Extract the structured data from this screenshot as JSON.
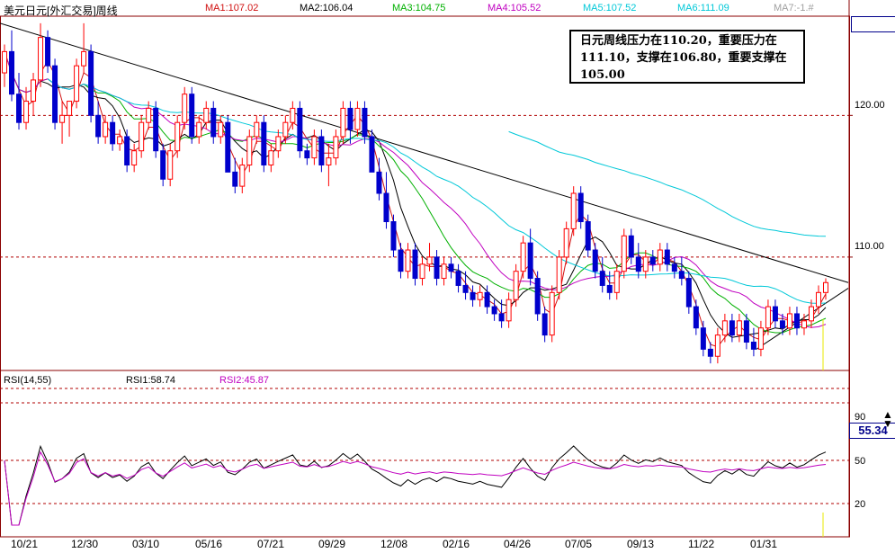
{
  "header": {
    "title": "美元日元[外汇交易]周线",
    "ma": [
      {
        "label": "MA1:107.02",
        "color": "#d01010"
      },
      {
        "label": "MA2:106.04",
        "color": "#000000"
      },
      {
        "label": "MA3:104.75",
        "color": "#00b000"
      },
      {
        "label": "MA4:105.52",
        "color": "#c000c0"
      },
      {
        "label": "MA5:107.52",
        "color": "#00c8d8"
      },
      {
        "label": "MA6:111.09",
        "color": "#00c8d8"
      },
      {
        "label": "MA7:-1.#",
        "color": "#a0a0a0"
      }
    ]
  },
  "annotation": {
    "line1": "日元周线压力在110.20，重要压力在",
    "line2": "111.10，支撑在106.80，重要支撑在",
    "line3": "105.00"
  },
  "rsi_panel": {
    "title": "RSI(14,55)",
    "rsi1_label": "RSI1:58.74",
    "rsi2_label": "RSI2:45.87",
    "rsi1_color": "#000000",
    "rsi2_color": "#c000c0",
    "current": "55.34"
  },
  "y_labels": {
    "price": [
      "120.00",
      "110.00"
    ],
    "rsi": [
      "90",
      "50",
      "20"
    ]
  },
  "x_labels": [
    "10/21",
    "12/30",
    "03/10",
    "05/16",
    "07/21",
    "09/29",
    "12/08",
    "02/16",
    "04/26",
    "07/05",
    "09/13",
    "11/22",
    "01/31"
  ],
  "colors": {
    "up": "#ff0000",
    "down": "#0000cc",
    "grid": "#b00000",
    "trend": "#000000"
  },
  "chart_data": {
    "type": "candlestick",
    "price_range": [
      102,
      127
    ],
    "gridlines": [
      120,
      110
    ],
    "trendlines": [
      {
        "from": [
          "10/21",
          126.5
        ],
        "to": [
          "01/31",
          108.2
        ]
      },
      {
        "from": [
          "11/22",
          103.5
        ],
        "to": [
          "01/31",
          107.8
        ]
      }
    ],
    "candles_ohlc": [
      [
        123,
        125,
        122,
        124.5
      ],
      [
        124.5,
        126,
        121,
        121.5
      ],
      [
        121.5,
        123,
        119,
        119.5
      ],
      [
        119.5,
        122,
        119,
        121
      ],
      [
        121,
        123,
        120,
        122.5
      ],
      [
        122.5,
        126.5,
        122,
        125.5
      ],
      [
        125.5,
        126,
        123,
        123.5
      ],
      [
        123.5,
        124,
        119,
        119.5
      ],
      [
        119.5,
        121,
        118,
        120
      ],
      [
        120,
        121,
        118.5,
        121
      ],
      [
        121,
        124,
        120.5,
        123.5
      ],
      [
        123.5,
        126.5,
        123,
        124.5
      ],
      [
        124.5,
        125,
        119.5,
        120
      ],
      [
        120,
        121,
        118,
        118.5
      ],
      [
        118.5,
        120,
        118,
        119.5
      ],
      [
        119.5,
        120,
        117.5,
        118
      ],
      [
        118,
        119,
        117.5,
        118.5
      ],
      [
        118.5,
        119,
        116,
        116.5
      ],
      [
        116.5,
        118,
        116,
        117.5
      ],
      [
        117.5,
        120,
        117,
        119.5
      ],
      [
        119.5,
        121,
        119,
        120.5
      ],
      [
        120.5,
        121,
        117,
        117.5
      ],
      [
        117.5,
        118,
        115,
        115.5
      ],
      [
        115.5,
        118,
        115,
        117.5
      ],
      [
        117.5,
        120,
        117,
        119.5
      ],
      [
        119.5,
        122,
        119,
        121.5
      ],
      [
        121.5,
        122,
        118,
        118.5
      ],
      [
        118.5,
        120,
        118,
        119.5
      ],
      [
        119.5,
        121,
        119,
        120.5
      ],
      [
        120.5,
        121,
        118,
        118.5
      ],
      [
        118.5,
        120,
        118,
        119.5
      ],
      [
        119.5,
        120,
        116,
        116
      ],
      [
        116,
        117,
        114.5,
        115
      ],
      [
        115,
        117,
        114.5,
        116.5
      ],
      [
        116.5,
        119,
        116,
        118.5
      ],
      [
        118.5,
        120,
        118,
        119.5
      ],
      [
        119.5,
        120,
        116,
        116.5
      ],
      [
        116.5,
        118,
        116,
        117.5
      ],
      [
        117.5,
        119,
        117,
        118.5
      ],
      [
        118.5,
        120,
        118,
        119.5
      ],
      [
        119.5,
        121,
        119,
        120.5
      ],
      [
        120.5,
        121,
        117,
        117.5
      ],
      [
        117.5,
        118,
        116.5,
        117
      ],
      [
        117,
        119,
        116.5,
        118.5
      ],
      [
        118.5,
        119,
        116,
        116.5
      ],
      [
        116.5,
        118,
        115,
        117
      ],
      [
        117,
        119,
        116.5,
        118.5
      ],
      [
        118.5,
        121,
        118,
        120.5
      ],
      [
        120.5,
        121,
        118,
        119
      ],
      [
        119,
        121,
        118.5,
        120.5
      ],
      [
        120.5,
        121,
        118,
        118.5
      ],
      [
        118.5,
        119,
        116,
        116
      ],
      [
        116,
        117,
        114,
        114.5
      ],
      [
        114.5,
        116,
        112,
        112.5
      ],
      [
        112.5,
        113,
        110,
        110.5
      ],
      [
        110.5,
        111,
        108.5,
        109
      ],
      [
        109,
        111,
        108.5,
        110.5
      ],
      [
        110.5,
        111,
        108,
        108.5
      ],
      [
        108.5,
        110,
        108,
        109.5
      ],
      [
        109.5,
        111,
        109,
        110
      ],
      [
        110,
        110.5,
        108,
        108.5
      ],
      [
        108.5,
        110,
        108,
        109.5
      ],
      [
        109.5,
        110,
        108.5,
        109
      ],
      [
        109,
        109.5,
        107.5,
        108
      ],
      [
        108,
        109,
        107,
        107.5
      ],
      [
        107.5,
        108,
        106.5,
        107
      ],
      [
        107,
        108,
        106.5,
        107.5
      ],
      [
        107.5,
        108,
        106,
        106.5
      ],
      [
        106.5,
        107,
        105.5,
        106
      ],
      [
        106,
        107,
        105,
        105.5
      ],
      [
        105.5,
        107.5,
        105,
        107
      ],
      [
        107,
        109.5,
        106.5,
        109
      ],
      [
        109,
        111.5,
        108.5,
        111
      ],
      [
        111,
        112,
        108,
        108.5
      ],
      [
        108.5,
        109,
        105.5,
        106
      ],
      [
        106,
        106.5,
        104,
        104.5
      ],
      [
        104.5,
        108,
        104,
        107.5
      ],
      [
        107.5,
        110.5,
        107,
        110
      ],
      [
        110,
        112.5,
        109.5,
        112
      ],
      [
        112,
        115,
        111.5,
        114.5
      ],
      [
        114.5,
        115,
        112,
        112.5
      ],
      [
        112.5,
        113,
        110,
        110.5
      ],
      [
        110.5,
        111,
        108.5,
        109
      ],
      [
        109,
        110,
        107.5,
        108
      ],
      [
        108,
        109,
        107,
        107.5
      ],
      [
        107.5,
        109.5,
        107,
        109
      ],
      [
        109,
        112,
        108.5,
        111.5
      ],
      [
        111.5,
        112,
        109.5,
        110
      ],
      [
        110,
        111,
        108.5,
        109
      ],
      [
        109,
        110.5,
        108.5,
        110
      ],
      [
        110,
        110.5,
        109,
        109.5
      ],
      [
        109.5,
        111,
        109,
        110.5
      ],
      [
        110.5,
        111,
        109,
        109.5
      ],
      [
        109.5,
        110,
        108.5,
        109
      ],
      [
        109,
        110,
        108,
        108.5
      ],
      [
        108.5,
        109,
        106,
        106.5
      ],
      [
        106.5,
        107,
        104.5,
        105
      ],
      [
        105,
        105.5,
        103,
        103.5
      ],
      [
        103.5,
        104,
        102.5,
        103
      ],
      [
        103,
        105,
        102.5,
        104.5
      ],
      [
        104.5,
        106,
        104,
        105.5
      ],
      [
        105.5,
        106,
        104,
        104.5
      ],
      [
        104.5,
        106,
        104,
        105.5
      ],
      [
        105.5,
        106,
        103.5,
        104
      ],
      [
        104,
        105,
        103,
        103.5
      ],
      [
        103.5,
        105.5,
        103,
        105
      ],
      [
        105,
        107,
        104.5,
        106.5
      ],
      [
        106.5,
        107,
        105,
        105.5
      ],
      [
        105.5,
        106,
        104.5,
        105
      ],
      [
        105,
        106.5,
        104.5,
        106
      ],
      [
        106,
        106.5,
        104.5,
        105
      ],
      [
        105,
        106,
        104.5,
        105.5
      ],
      [
        105.5,
        107,
        105,
        106.5
      ],
      [
        106.5,
        108,
        106,
        107.5
      ],
      [
        107.5,
        108.5,
        107,
        108.2
      ]
    ],
    "ma_values": {
      "MA1": 107.02,
      "MA2": 106.04,
      "MA3": 104.75,
      "MA4": 105.52,
      "MA5": 107.52,
      "MA6": 111.09
    },
    "rsi_range": [
      0,
      100
    ],
    "rsi_gridlines": [
      90,
      50,
      20
    ]
  }
}
